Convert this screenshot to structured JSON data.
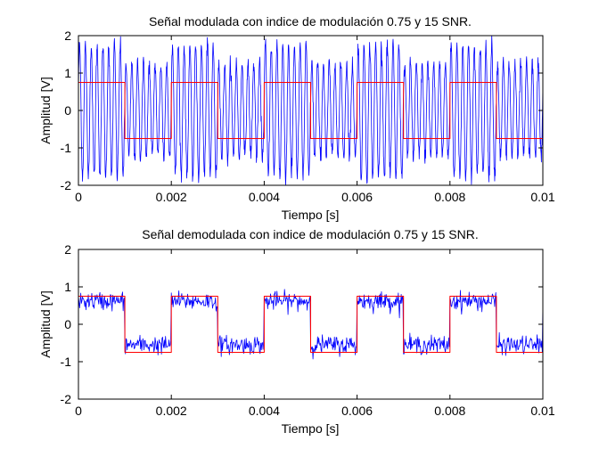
{
  "chart_data": [
    {
      "type": "line",
      "title": "Señal modulada con indice de modulación 0.75 y 15 SNR.",
      "xlabel": "Tiempo [s]",
      "ylabel": "Amplitud [V]",
      "xlim": [
        0,
        0.01
      ],
      "ylim": [
        -2,
        2
      ],
      "xticks": [
        0,
        0.002,
        0.004,
        0.006,
        0.008,
        0.01
      ],
      "xtick_labels": [
        "0",
        "0.002",
        "0.004",
        "0.006",
        "0.008",
        "0.01"
      ],
      "yticks": [
        -2,
        -1,
        0,
        1,
        2
      ],
      "ytick_labels": [
        "-2",
        "-1",
        "0",
        "1",
        "2"
      ],
      "grid": false,
      "series": [
        {
          "color": "#0000ff",
          "kind": "modulated-noisy-carrier",
          "carrier_frequency_hz": 8000,
          "noise_std": 0.12,
          "high_amplitude": 1.75,
          "low_amplitude": 1.25
        },
        {
          "color": "#ff0000",
          "kind": "square-wave",
          "x": [
            0,
            0.001,
            0.001,
            0.002,
            0.002,
            0.003,
            0.003,
            0.004,
            0.004,
            0.005,
            0.005,
            0.006,
            0.006,
            0.007,
            0.007,
            0.008,
            0.008,
            0.009,
            0.009,
            0.01
          ],
          "y": [
            0.75,
            0.75,
            -0.75,
            -0.75,
            0.75,
            0.75,
            -0.75,
            -0.75,
            0.75,
            0.75,
            -0.75,
            -0.75,
            0.75,
            0.75,
            -0.75,
            -0.75,
            0.75,
            0.75,
            -0.75,
            -0.75
          ]
        }
      ]
    },
    {
      "type": "line",
      "title": "Señal demodulada con indice de modulación 0.75 y 15 SNR.",
      "xlabel": "Tiempo [s]",
      "ylabel": "Amplitud [V]",
      "xlim": [
        0,
        0.01
      ],
      "ylim": [
        -2,
        2
      ],
      "xticks": [
        0,
        0.002,
        0.004,
        0.006,
        0.008,
        0.01
      ],
      "xtick_labels": [
        "0",
        "0.002",
        "0.004",
        "0.006",
        "0.008",
        "0.01"
      ],
      "yticks": [
        -2,
        -1,
        0,
        1,
        2
      ],
      "ytick_labels": [
        "-2",
        "-1",
        "0",
        "1",
        "2"
      ],
      "grid": false,
      "series": [
        {
          "color": "#0000ff",
          "kind": "demodulated-noisy",
          "high_level": 0.62,
          "low_level": -0.55,
          "noise_std": 0.12
        },
        {
          "color": "#ff0000",
          "kind": "square-wave",
          "x": [
            0,
            0.001,
            0.001,
            0.002,
            0.002,
            0.003,
            0.003,
            0.004,
            0.004,
            0.005,
            0.005,
            0.006,
            0.006,
            0.007,
            0.007,
            0.008,
            0.008,
            0.009,
            0.009,
            0.01
          ],
          "y": [
            0.75,
            0.75,
            -0.75,
            -0.75,
            0.75,
            0.75,
            -0.75,
            -0.75,
            0.75,
            0.75,
            -0.75,
            -0.75,
            0.75,
            0.75,
            -0.75,
            -0.75,
            0.75,
            0.75,
            -0.75,
            -0.75
          ]
        }
      ]
    }
  ]
}
